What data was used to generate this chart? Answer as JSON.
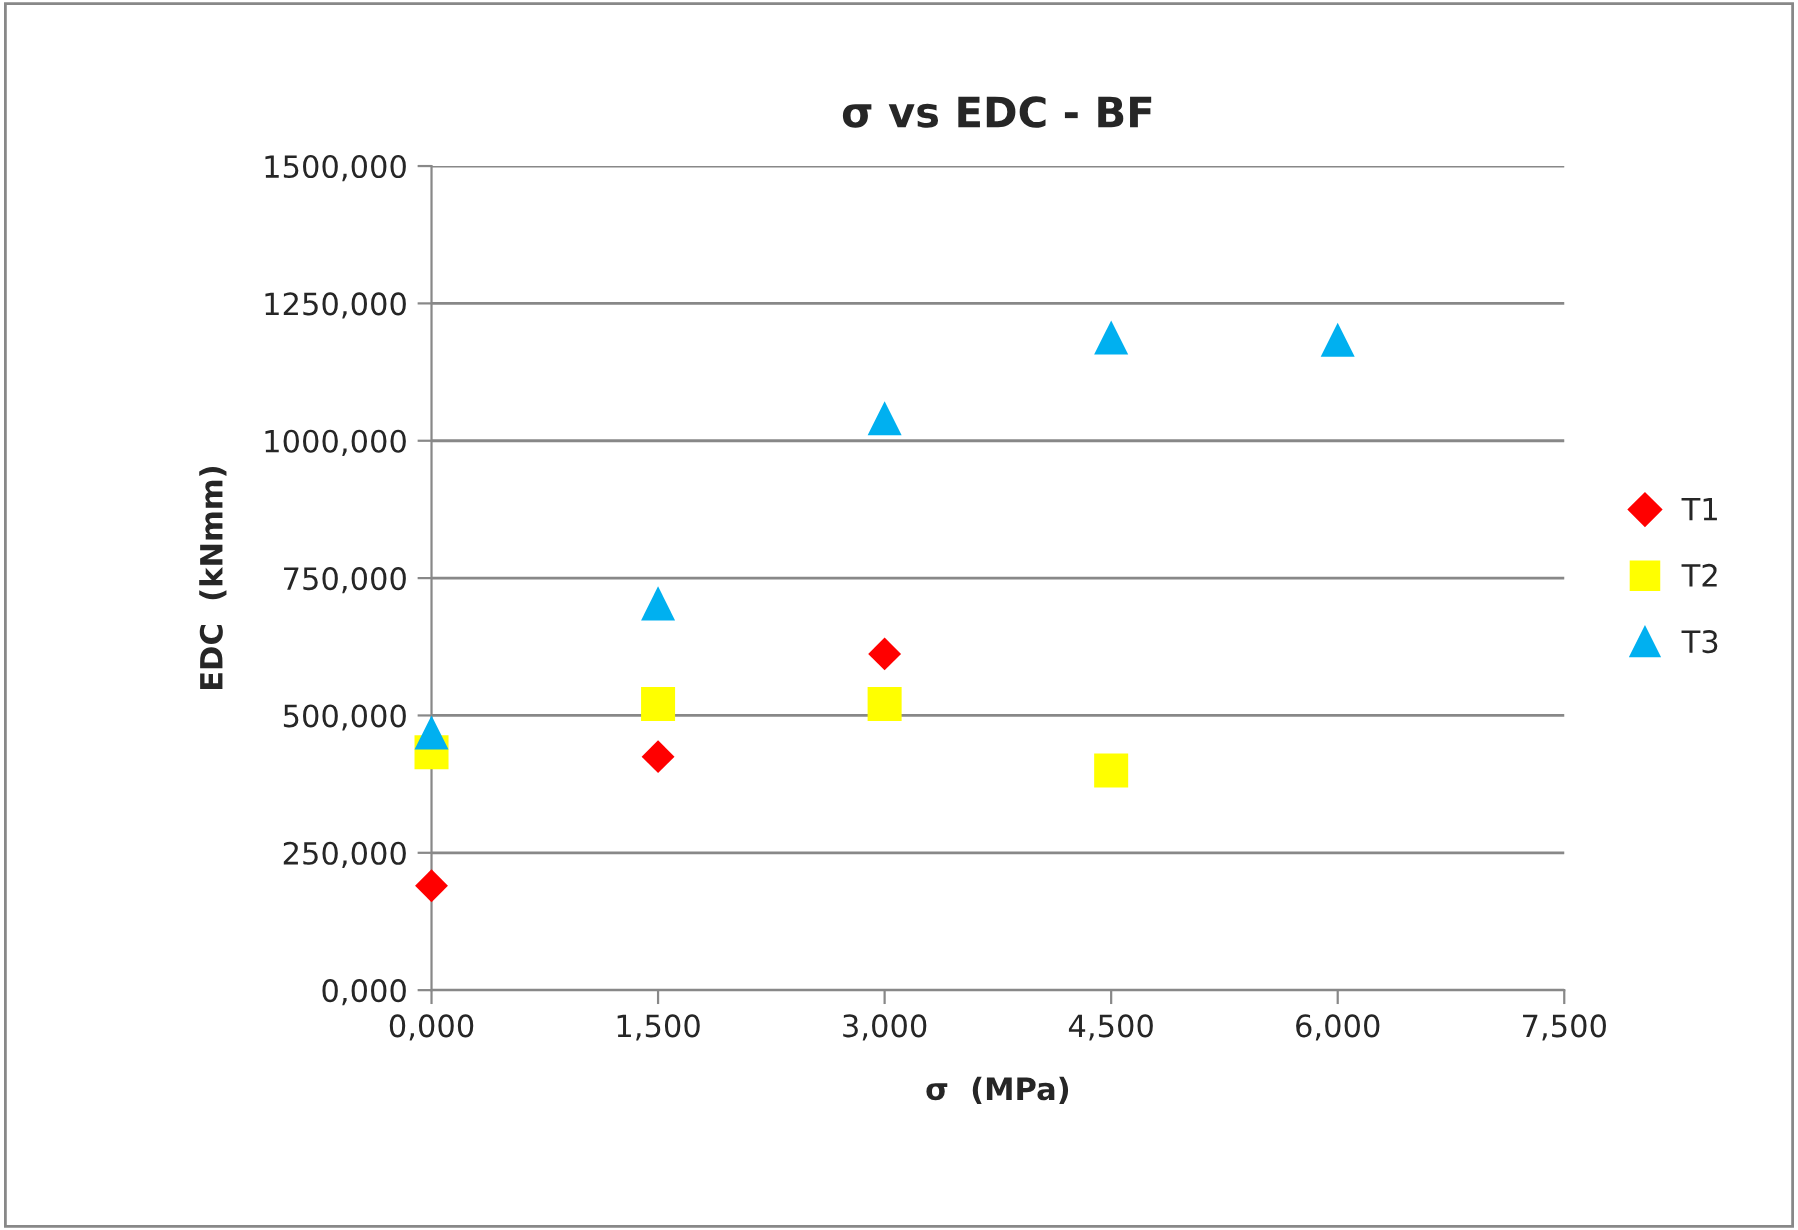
{
  "chart_data": {
    "type": "scatter",
    "title": "σ vs EDC - BF",
    "xlabel": "σ  (MPa)",
    "ylabel": "EDC  (kNmm)",
    "series": [
      {
        "name": "T1",
        "color": "#ff0000",
        "marker": "diamond",
        "x": [
          0,
          1.5,
          3
        ],
        "values": [
          190,
          425,
          612
        ]
      },
      {
        "name": "T2",
        "color": "#ffff00",
        "marker": "square",
        "x": [
          0,
          1.5,
          3,
          4.5
        ],
        "values": [
          433,
          521,
          521,
          400
        ]
      },
      {
        "name": "T3",
        "color": "#00b0f0",
        "marker": "triangle",
        "x": [
          0,
          1.5,
          3,
          4.5,
          6
        ],
        "values": [
          469,
          704,
          1041,
          1188,
          1184
        ]
      }
    ],
    "xlim": [
      0,
      7.5
    ],
    "xticks": [
      {
        "value": 0,
        "label": "0,000"
      },
      {
        "value": 1.5,
        "label": "1,500"
      },
      {
        "value": 3,
        "label": "3,000"
      },
      {
        "value": 4.5,
        "label": "4,500"
      },
      {
        "value": 6,
        "label": "6,000"
      },
      {
        "value": 7.5,
        "label": "7,500"
      }
    ],
    "ylim": [
      0,
      1500
    ],
    "yticks": [
      {
        "value": 0,
        "label": "0,000"
      },
      {
        "value": 250,
        "label": "250,000"
      },
      {
        "value": 500,
        "label": "500,000"
      },
      {
        "value": 750,
        "label": "750,000"
      },
      {
        "value": 1000,
        "label": "1000,000"
      },
      {
        "value": 1250,
        "label": "1250,000"
      },
      {
        "value": 1500,
        "label": "1500,000"
      }
    ],
    "grid": "y",
    "legend": "right"
  }
}
